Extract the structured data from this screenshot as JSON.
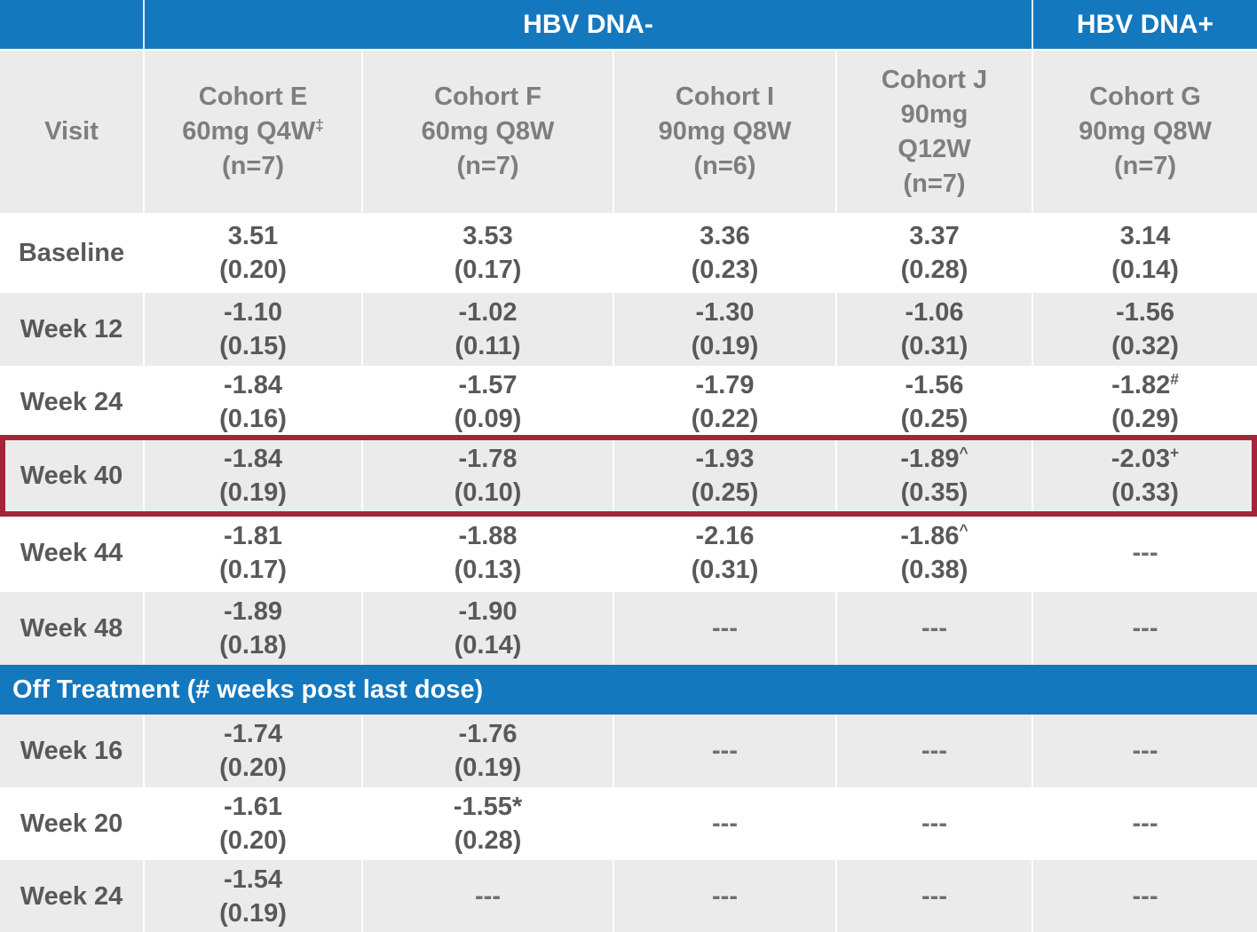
{
  "colors": {
    "header_blue": "#1478BE",
    "highlight_red": "#A32638",
    "row_stripe_gray": "#EBEBEB",
    "data_text_gray": "#595959",
    "header_text_gray": "#7E7E7E"
  },
  "chart_data": {
    "type": "table",
    "group_headers": [
      {
        "label": "",
        "columns": [
          "Visit"
        ]
      },
      {
        "label": "HBV DNA-",
        "columns": [
          "Cohort E",
          "Cohort F",
          "Cohort I",
          "Cohort J"
        ]
      },
      {
        "label": "HBV DNA+",
        "columns": [
          "Cohort G"
        ]
      }
    ],
    "col_headers": [
      {
        "key": "visit",
        "lines": [
          "Visit"
        ]
      },
      {
        "key": "cohort-e",
        "lines": [
          "Cohort E",
          {
            "t": "60mg Q4W",
            "sup": "‡"
          },
          "(n=7)"
        ]
      },
      {
        "key": "cohort-f",
        "lines": [
          "Cohort F",
          "60mg Q8W",
          "(n=7)"
        ]
      },
      {
        "key": "cohort-i",
        "lines": [
          "Cohort I",
          "90mg Q8W",
          "(n=6)"
        ]
      },
      {
        "key": "cohort-j",
        "lines": [
          "Cohort J",
          "90mg",
          "Q12W",
          "(n=7)"
        ]
      },
      {
        "key": "cohort-g",
        "lines": [
          "Cohort G",
          "90mg Q8W",
          "(n=7)"
        ]
      }
    ],
    "highlighted_row": "Week 40",
    "sections": [
      {
        "label": "",
        "rows": [
          {
            "visit": "Baseline",
            "shade": "white",
            "cells": [
              {
                "v": "3.51",
                "se": "(0.20)"
              },
              {
                "v": "3.53",
                "se": "(0.17)"
              },
              {
                "v": "3.36",
                "se": "(0.23)"
              },
              {
                "v": "3.37",
                "se": "(0.28)"
              },
              {
                "v": "3.14",
                "se": "(0.14)"
              }
            ]
          },
          {
            "visit": "Week 12",
            "shade": "gray",
            "cells": [
              {
                "v": "-1.10",
                "se": "(0.15)"
              },
              {
                "v": "-1.02",
                "se": "(0.11)"
              },
              {
                "v": "-1.30",
                "se": "(0.19)"
              },
              {
                "v": "-1.06",
                "se": "(0.31)"
              },
              {
                "v": "-1.56",
                "se": "(0.32)"
              }
            ]
          },
          {
            "visit": "Week 24",
            "shade": "white",
            "cells": [
              {
                "v": "-1.84",
                "se": "(0.16)"
              },
              {
                "v": "-1.57",
                "se": "(0.09)"
              },
              {
                "v": "-1.79",
                "se": "(0.22)"
              },
              {
                "v": "-1.56",
                "se": "(0.25)"
              },
              {
                "v": "-1.82",
                "sup": "#",
                "se": "(0.29)"
              }
            ]
          },
          {
            "visit": "Week 40",
            "shade": "gray",
            "highlight": true,
            "cells": [
              {
                "v": "-1.84",
                "se": "(0.19)"
              },
              {
                "v": "-1.78",
                "se": "(0.10)"
              },
              {
                "v": "-1.93",
                "se": "(0.25)"
              },
              {
                "v": "-1.89",
                "sup": "^",
                "se": "(0.35)"
              },
              {
                "v": "-2.03",
                "sup": "+",
                "se": "(0.33)"
              }
            ]
          },
          {
            "visit": "Week 44",
            "shade": "white",
            "cells": [
              {
                "v": "-1.81",
                "se": "(0.17)"
              },
              {
                "v": "-1.88",
                "se": "(0.13)"
              },
              {
                "v": "-2.16",
                "se": "(0.31)"
              },
              {
                "v": "-1.86",
                "sup": "^",
                "se": "(0.38)"
              },
              {
                "dash": "---"
              }
            ]
          },
          {
            "visit": "Week 48",
            "shade": "gray",
            "cells": [
              {
                "v": "-1.89",
                "se": "(0.18)"
              },
              {
                "v": "-1.90",
                "se": "(0.14)"
              },
              {
                "dash": "---"
              },
              {
                "dash": "---"
              },
              {
                "dash": "---"
              }
            ]
          }
        ]
      },
      {
        "label": "Off Treatment (# weeks post last dose)",
        "rows": [
          {
            "visit": "Week 16",
            "shade": "gray",
            "cells": [
              {
                "v": "-1.74",
                "se": "(0.20)"
              },
              {
                "v": "-1.76",
                "se": "(0.19)"
              },
              {
                "dash": "---"
              },
              {
                "dash": "---"
              },
              {
                "dash": "---"
              }
            ]
          },
          {
            "visit": "Week 20",
            "shade": "white",
            "cells": [
              {
                "v": "-1.61",
                "se": "(0.20)"
              },
              {
                "v": "-1.55*",
                "se": "(0.28)"
              },
              {
                "dash": "---"
              },
              {
                "dash": "---"
              },
              {
                "dash": "---"
              }
            ]
          },
          {
            "visit": "Week 24",
            "shade": "gray",
            "cells": [
              {
                "v": "-1.54",
                "se": "(0.19)"
              },
              {
                "dash": "---"
              },
              {
                "dash": "---"
              },
              {
                "dash": "---"
              },
              {
                "dash": "---"
              }
            ]
          }
        ]
      }
    ]
  }
}
